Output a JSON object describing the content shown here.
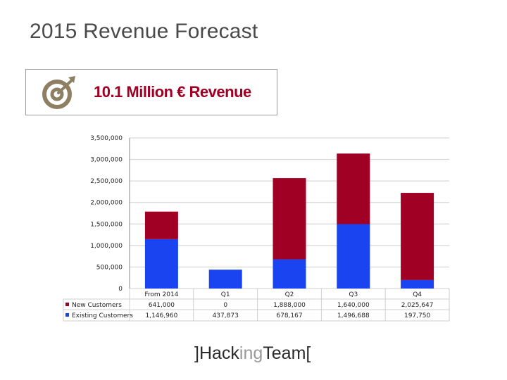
{
  "slide": {
    "title": "2015 Revenue Forecast",
    "headline": "10.1 Million € Revenue"
  },
  "logo": {
    "prefix": "]Hack",
    "middle": "ing",
    "suffix": "Team["
  },
  "icons": {
    "target": "target-icon"
  },
  "colors": {
    "new": "#a00024",
    "existing": "#1a44f0",
    "icon": "#8e7e62",
    "grid": "#cfcfcf",
    "axis": "#888888"
  },
  "chart_data": {
    "type": "bar",
    "stacked": true,
    "title": "",
    "xlabel": "",
    "ylabel": "",
    "categories": [
      "From 2014",
      "Q1",
      "Q2",
      "Q3",
      "Q4"
    ],
    "series": [
      {
        "name": "New Customers",
        "values": [
          641000,
          0,
          1888000,
          1640000,
          2025647
        ],
        "labels": [
          "641,000",
          "0",
          "1,888,000",
          "1,640,000",
          "2,025,647"
        ]
      },
      {
        "name": "Existing Customers",
        "values": [
          1146960,
          437873,
          678167,
          1496688,
          197750
        ],
        "labels": [
          "1,146,960",
          "437,873",
          "678,167",
          "1,496,688",
          "197,750"
        ]
      }
    ],
    "ylim": [
      0,
      3500000
    ],
    "yticks": [
      0,
      500000,
      1000000,
      1500000,
      2000000,
      2500000,
      3000000,
      3500000
    ],
    "ytick_labels": [
      "0",
      "500,000",
      "1,000,000",
      "1,500,000",
      "2,000,000",
      "2,500,000",
      "3,000,000",
      "3,500,000"
    ],
    "grid": true,
    "legend": "table-left"
  }
}
